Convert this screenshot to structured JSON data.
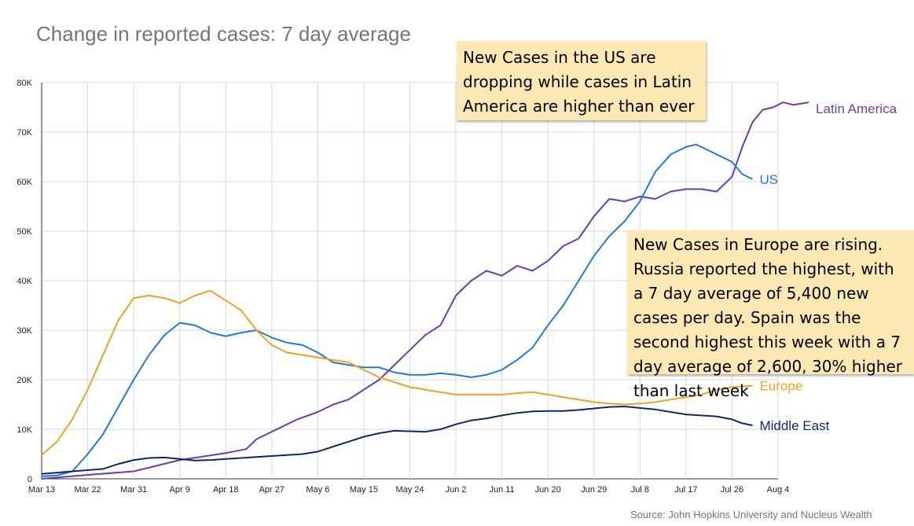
{
  "title": "Change in reported cases: 7 day average",
  "source": "Source: John Hopkins University and Nucleus Wealth",
  "annotations": [
    "New Cases in the US are dropping while cases in Latin America are higher than ever",
    "New Cases in Europe are rising. Russia reported the highest, with a 7 day average of 5,400 new cases per day. Spain was the second highest this week with a 7 day average of 2,600, 30% higher than last week"
  ],
  "chart_data": {
    "type": "line",
    "x_ticks": [
      "Mar 13",
      "Mar 22",
      "Mar 31",
      "Apr 9",
      "Apr 18",
      "Apr 27",
      "May 6",
      "May 15",
      "May 24",
      "Jun 2",
      "Jun 11",
      "Jun 20",
      "Jun 29",
      "Jul 8",
      "Jul 17",
      "Jul 26",
      "Aug 4"
    ],
    "x_range": [
      0,
      144
    ],
    "y_ticks": [
      "0",
      "10K",
      "20K",
      "30K",
      "40K",
      "50K",
      "60K",
      "70K",
      "80K"
    ],
    "ylim": [
      0,
      80000
    ],
    "grid": true,
    "legend": "inline labels at right end of lines",
    "series": [
      {
        "name": "Latin America",
        "color": "#6a3bb5",
        "points": [
          [
            0,
            0
          ],
          [
            9,
            800
          ],
          [
            18,
            1500
          ],
          [
            27,
            3800
          ],
          [
            36,
            5200
          ],
          [
            40,
            6000
          ],
          [
            42,
            8000
          ],
          [
            45,
            9500
          ],
          [
            48,
            11000
          ],
          [
            50,
            12000
          ],
          [
            54,
            13500
          ],
          [
            57,
            15000
          ],
          [
            60,
            16000
          ],
          [
            63,
            18000
          ],
          [
            66,
            20000
          ],
          [
            69,
            23000
          ],
          [
            72,
            26000
          ],
          [
            75,
            29000
          ],
          [
            78,
            31000
          ],
          [
            81,
            37000
          ],
          [
            84,
            40000
          ],
          [
            87,
            42000
          ],
          [
            90,
            41000
          ],
          [
            93,
            43000
          ],
          [
            96,
            42000
          ],
          [
            99,
            44000
          ],
          [
            102,
            47000
          ],
          [
            105,
            48500
          ],
          [
            108,
            53000
          ],
          [
            111,
            56500
          ],
          [
            114,
            56000
          ],
          [
            117,
            57000
          ],
          [
            120,
            56500
          ],
          [
            123,
            58000
          ],
          [
            126,
            58500
          ],
          [
            129,
            58500
          ],
          [
            132,
            58000
          ],
          [
            135,
            61000
          ],
          [
            137,
            67000
          ],
          [
            139,
            72000
          ],
          [
            141,
            74500
          ],
          [
            143,
            75000
          ],
          [
            145,
            76000
          ],
          [
            147,
            75500
          ],
          [
            150,
            76000
          ]
        ]
      },
      {
        "name": "US",
        "color": "#1f7ad6",
        "points": [
          [
            0,
            500
          ],
          [
            3,
            700
          ],
          [
            6,
            1500
          ],
          [
            9,
            5000
          ],
          [
            12,
            9000
          ],
          [
            15,
            14500
          ],
          [
            18,
            20000
          ],
          [
            21,
            25000
          ],
          [
            24,
            29000
          ],
          [
            27,
            31500
          ],
          [
            30,
            31000
          ],
          [
            33,
            29500
          ],
          [
            36,
            28800
          ],
          [
            39,
            29500
          ],
          [
            42,
            30000
          ],
          [
            45,
            28500
          ],
          [
            48,
            27500
          ],
          [
            51,
            27000
          ],
          [
            54,
            25500
          ],
          [
            57,
            23500
          ],
          [
            60,
            23000
          ],
          [
            63,
            22500
          ],
          [
            66,
            22500
          ],
          [
            69,
            21500
          ],
          [
            72,
            21000
          ],
          [
            75,
            21000
          ],
          [
            78,
            21300
          ],
          [
            81,
            21000
          ],
          [
            84,
            20500
          ],
          [
            87,
            21000
          ],
          [
            90,
            22000
          ],
          [
            93,
            24000
          ],
          [
            96,
            26500
          ],
          [
            99,
            31000
          ],
          [
            102,
            35000
          ],
          [
            105,
            40000
          ],
          [
            108,
            45000
          ],
          [
            111,
            49000
          ],
          [
            114,
            52000
          ],
          [
            117,
            56000
          ],
          [
            120,
            62000
          ],
          [
            123,
            65500
          ],
          [
            126,
            67000
          ],
          [
            128,
            67500
          ],
          [
            130,
            66500
          ],
          [
            132,
            65500
          ],
          [
            135,
            64000
          ],
          [
            137,
            61500
          ],
          [
            139,
            60500
          ]
        ]
      },
      {
        "name": "Europe",
        "color": "#f2a21a",
        "points": [
          [
            0,
            4800
          ],
          [
            3,
            7500
          ],
          [
            6,
            12000
          ],
          [
            9,
            18000
          ],
          [
            12,
            25000
          ],
          [
            15,
            32000
          ],
          [
            18,
            36500
          ],
          [
            21,
            37000
          ],
          [
            24,
            36500
          ],
          [
            27,
            35500
          ],
          [
            30,
            37000
          ],
          [
            33,
            38000
          ],
          [
            36,
            36000
          ],
          [
            39,
            34000
          ],
          [
            42,
            30000
          ],
          [
            45,
            27000
          ],
          [
            48,
            25500
          ],
          [
            51,
            25000
          ],
          [
            54,
            24500
          ],
          [
            57,
            24000
          ],
          [
            60,
            23500
          ],
          [
            63,
            22000
          ],
          [
            66,
            20500
          ],
          [
            69,
            19500
          ],
          [
            72,
            18500
          ],
          [
            75,
            18000
          ],
          [
            78,
            17500
          ],
          [
            81,
            17000
          ],
          [
            84,
            17000
          ],
          [
            87,
            17000
          ],
          [
            90,
            17000
          ],
          [
            93,
            17300
          ],
          [
            96,
            17500
          ],
          [
            99,
            17000
          ],
          [
            102,
            16500
          ],
          [
            105,
            16000
          ],
          [
            108,
            15500
          ],
          [
            111,
            15200
          ],
          [
            114,
            15000
          ],
          [
            117,
            15200
          ],
          [
            120,
            15500
          ],
          [
            123,
            16000
          ],
          [
            126,
            16500
          ],
          [
            129,
            17000
          ],
          [
            132,
            18000
          ],
          [
            135,
            18500
          ],
          [
            139,
            18800
          ]
        ]
      },
      {
        "name": "Middle East",
        "color": "#0d2a66",
        "points": [
          [
            0,
            1000
          ],
          [
            6,
            1500
          ],
          [
            12,
            2000
          ],
          [
            15,
            3000
          ],
          [
            18,
            3800
          ],
          [
            21,
            4200
          ],
          [
            24,
            4300
          ],
          [
            27,
            4000
          ],
          [
            30,
            3700
          ],
          [
            33,
            3800
          ],
          [
            36,
            4000
          ],
          [
            39,
            4200
          ],
          [
            42,
            4400
          ],
          [
            45,
            4600
          ],
          [
            48,
            4800
          ],
          [
            51,
            5000
          ],
          [
            54,
            5500
          ],
          [
            57,
            6500
          ],
          [
            60,
            7500
          ],
          [
            63,
            8500
          ],
          [
            66,
            9200
          ],
          [
            69,
            9700
          ],
          [
            72,
            9600
          ],
          [
            75,
            9500
          ],
          [
            78,
            10000
          ],
          [
            81,
            11000
          ],
          [
            84,
            11800
          ],
          [
            87,
            12200
          ],
          [
            90,
            12800
          ],
          [
            93,
            13300
          ],
          [
            96,
            13600
          ],
          [
            99,
            13700
          ],
          [
            102,
            13700
          ],
          [
            105,
            13900
          ],
          [
            108,
            14200
          ],
          [
            111,
            14500
          ],
          [
            114,
            14600
          ],
          [
            117,
            14300
          ],
          [
            120,
            14000
          ],
          [
            123,
            13500
          ],
          [
            126,
            13000
          ],
          [
            129,
            12800
          ],
          [
            132,
            12600
          ],
          [
            135,
            12000
          ],
          [
            137,
            11200
          ],
          [
            139,
            10800
          ]
        ]
      }
    ]
  }
}
